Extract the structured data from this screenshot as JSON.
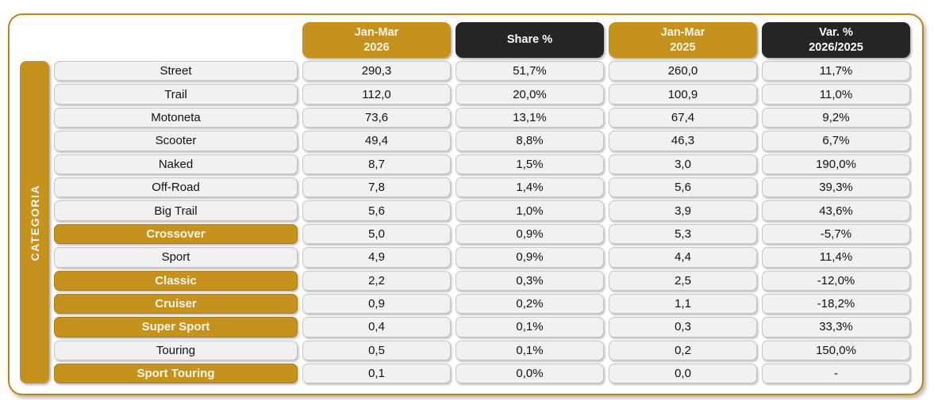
{
  "colors": {
    "gold": "#C6921E",
    "dark": "#262424",
    "cell-bg": "#F1F1F1",
    "cell-border": "#C6C6C6",
    "frame-border": "#B9861B",
    "gold-text": "#FBF4E0"
  },
  "table": {
    "side_label": "CATEGORIA",
    "columns": [
      {
        "label": "Jan-Mar\n2026",
        "variant": "gold"
      },
      {
        "label": "Share %",
        "variant": "dark"
      },
      {
        "label": "Jan-Mar\n2025",
        "variant": "gold"
      },
      {
        "label": "Var. %\n2026/2025",
        "variant": "dark"
      }
    ],
    "rows": [
      {
        "category": "Street",
        "highlight": false,
        "values": [
          "290,3",
          "51,7%",
          "260,0",
          "11,7%"
        ]
      },
      {
        "category": "Trail",
        "highlight": false,
        "values": [
          "112,0",
          "20,0%",
          "100,9",
          "11,0%"
        ]
      },
      {
        "category": "Motoneta",
        "highlight": false,
        "values": [
          "73,6",
          "13,1%",
          "67,4",
          "9,2%"
        ]
      },
      {
        "category": "Scooter",
        "highlight": false,
        "values": [
          "49,4",
          "8,8%",
          "46,3",
          "6,7%"
        ]
      },
      {
        "category": "Naked",
        "highlight": false,
        "values": [
          "8,7",
          "1,5%",
          "3,0",
          "190,0%"
        ]
      },
      {
        "category": "Off-Road",
        "highlight": false,
        "values": [
          "7,8",
          "1,4%",
          "5,6",
          "39,3%"
        ]
      },
      {
        "category": "Big Trail",
        "highlight": false,
        "values": [
          "5,6",
          "1,0%",
          "3,9",
          "43,6%"
        ]
      },
      {
        "category": "Crossover",
        "highlight": true,
        "values": [
          "5,0",
          "0,9%",
          "5,3",
          "-5,7%"
        ]
      },
      {
        "category": "Sport",
        "highlight": false,
        "values": [
          "4,9",
          "0,9%",
          "4,4",
          "11,4%"
        ]
      },
      {
        "category": "Classic",
        "highlight": true,
        "values": [
          "2,2",
          "0,3%",
          "2,5",
          "-12,0%"
        ]
      },
      {
        "category": "Cruiser",
        "highlight": true,
        "values": [
          "0,9",
          "0,2%",
          "1,1",
          "-18,2%"
        ]
      },
      {
        "category": "Super Sport",
        "highlight": true,
        "values": [
          "0,4",
          "0,1%",
          "0,3",
          "33,3%"
        ]
      },
      {
        "category": "Touring",
        "highlight": false,
        "values": [
          "0,5",
          "0,1%",
          "0,2",
          "150,0%"
        ]
      },
      {
        "category": "Sport Touring",
        "highlight": true,
        "values": [
          "0,1",
          "0,0%",
          "0,0",
          "-"
        ]
      }
    ]
  },
  "chart_data": {
    "type": "table",
    "row_header": "CATEGORIA",
    "categories": [
      "Street",
      "Trail",
      "Motoneta",
      "Scooter",
      "Naked",
      "Off-Road",
      "Big Trail",
      "Crossover",
      "Sport",
      "Classic",
      "Cruiser",
      "Super Sport",
      "Touring",
      "Sport Touring"
    ],
    "columns": [
      "Jan-Mar 2026",
      "Share %",
      "Jan-Mar 2025",
      "Var. % 2026/2025"
    ],
    "series": [
      {
        "name": "Jan-Mar 2026",
        "values": [
          290.3,
          112.0,
          73.6,
          49.4,
          8.7,
          7.8,
          5.6,
          5.0,
          4.9,
          2.2,
          0.9,
          0.4,
          0.5,
          0.1
        ]
      },
      {
        "name": "Share %",
        "values": [
          51.7,
          20.0,
          13.1,
          8.8,
          1.5,
          1.4,
          1.0,
          0.9,
          0.9,
          0.3,
          0.2,
          0.1,
          0.1,
          0.0
        ]
      },
      {
        "name": "Jan-Mar 2025",
        "values": [
          260.0,
          100.9,
          67.4,
          46.3,
          3.0,
          5.6,
          3.9,
          5.3,
          4.4,
          2.5,
          1.1,
          0.3,
          0.2,
          0.0
        ]
      },
      {
        "name": "Var. % 2026/2025",
        "values": [
          11.7,
          11.0,
          9.2,
          6.7,
          190.0,
          39.3,
          43.6,
          -5.7,
          11.4,
          -12.0,
          -18.2,
          33.3,
          150.0,
          null
        ]
      }
    ],
    "highlighted_categories": [
      "Crossover",
      "Classic",
      "Cruiser",
      "Super Sport",
      "Sport Touring"
    ],
    "decimal_separator": ","
  }
}
